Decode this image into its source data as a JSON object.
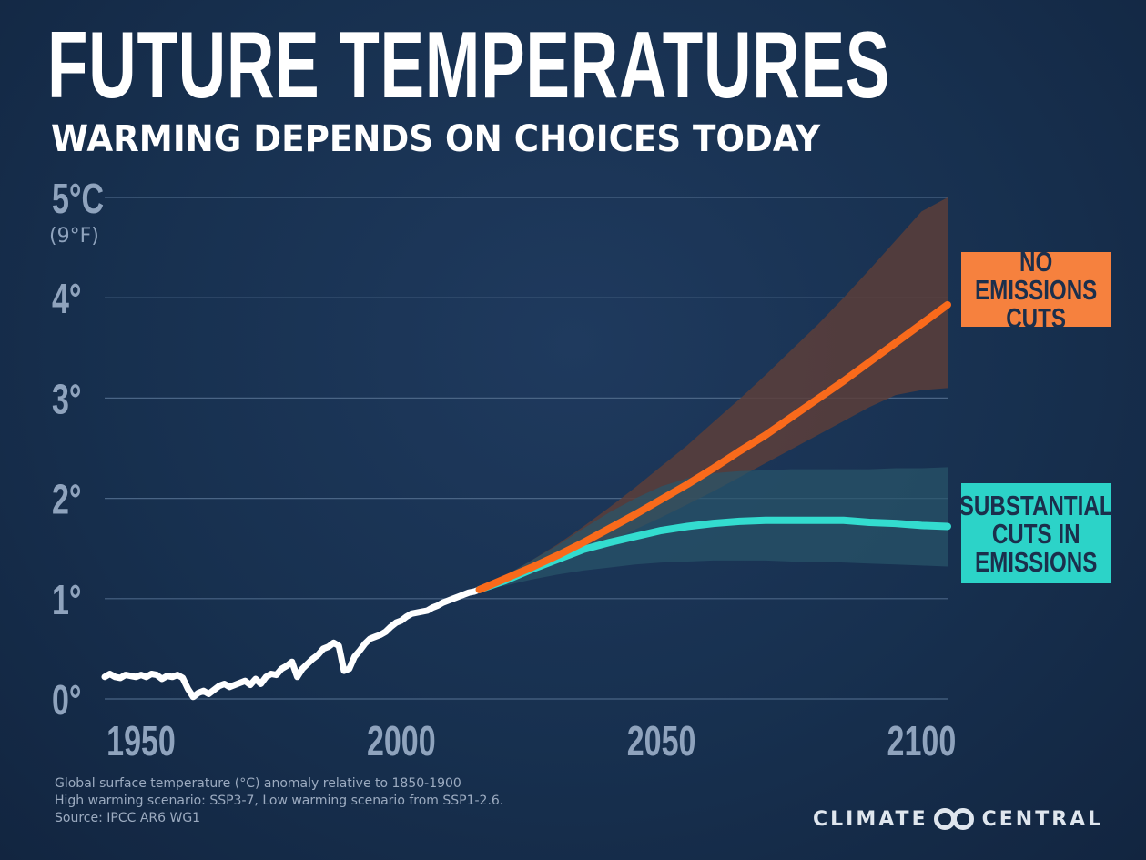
{
  "header": {
    "title": "FUTURE TEMPERATURES",
    "subtitle": "WARMING DEPENDS ON CHOICES TODAY"
  },
  "labels": {
    "high_scenario": "NO EMISSIONS\nCUTS",
    "low_scenario": "SUBSTANTIAL\nCUTS IN\nEMISSIONS"
  },
  "footnotes": [
    "Global surface temperature (°C) anomaly relative to 1850-1900",
    "High warming scenario: SSP3-7, Low warming scenario from SSP1-2.6.",
    "Source: IPCC AR6 WG1"
  ],
  "brand": {
    "left": "CLIMATE",
    "right": "CENTRAL",
    "icon": "climate-central-logo-icon"
  },
  "colors": {
    "background": "#17304f",
    "historical": "#ffffff",
    "high": "#f96a1b",
    "high_band": "#5c3e3a",
    "low": "#33dccf",
    "low_band": "#28556a",
    "grid": "#4a6585",
    "axis_text": "#8fa3bd"
  },
  "chart_data": {
    "type": "line",
    "title": "FUTURE TEMPERATURES",
    "subtitle": "WARMING DEPENDS ON CHOICES TODAY",
    "xlabel": "",
    "ylabel": "Global surface temperature (°C) anomaly relative to 1850-1900",
    "xlim": [
      1943,
      2105
    ],
    "ylim": [
      0,
      5
    ],
    "grid": true,
    "x_ticks": [
      {
        "value": 1950,
        "label": "1950"
      },
      {
        "value": 2000,
        "label": "2000"
      },
      {
        "value": 2050,
        "label": "2050"
      },
      {
        "value": 2100,
        "label": "2100"
      }
    ],
    "y_ticks": [
      {
        "value": 0,
        "label": "0°"
      },
      {
        "value": 1,
        "label": "1°"
      },
      {
        "value": 2,
        "label": "2°"
      },
      {
        "value": 3,
        "label": "3°"
      },
      {
        "value": 4,
        "label": "4°"
      },
      {
        "value": 5,
        "label": "5°C"
      }
    ],
    "y_top_secondary_label": "(9°F)",
    "series": [
      {
        "name": "Historical",
        "x": [
          1943,
          1944,
          1945,
          1946,
          1947,
          1948,
          1949,
          1950,
          1951,
          1952,
          1953,
          1954,
          1955,
          1956,
          1957,
          1958,
          1959,
          1960,
          1961,
          1962,
          1963,
          1964,
          1965,
          1966,
          1967,
          1968,
          1969,
          1970,
          1971,
          1972,
          1973,
          1974,
          1975,
          1976,
          1977,
          1978,
          1979,
          1980,
          1981,
          1982,
          1983,
          1984,
          1985,
          1986,
          1987,
          1988,
          1989,
          1990,
          1991,
          1992,
          1993,
          1994,
          1995,
          1996,
          1997,
          1998,
          1999,
          2000,
          2001,
          2002,
          2003,
          2004,
          2005,
          2006,
          2007,
          2008,
          2009,
          2010,
          2011,
          2012,
          2013,
          2014,
          2015
        ],
        "values": [
          0.22,
          0.25,
          0.22,
          0.21,
          0.24,
          0.23,
          0.22,
          0.24,
          0.22,
          0.25,
          0.24,
          0.2,
          0.23,
          0.22,
          0.24,
          0.21,
          0.1,
          0.02,
          0.06,
          0.08,
          0.05,
          0.09,
          0.13,
          0.15,
          0.12,
          0.14,
          0.16,
          0.18,
          0.14,
          0.2,
          0.15,
          0.22,
          0.25,
          0.24,
          0.3,
          0.33,
          0.37,
          0.22,
          0.3,
          0.35,
          0.4,
          0.44,
          0.5,
          0.52,
          0.56,
          0.53,
          0.28,
          0.3,
          0.42,
          0.48,
          0.55,
          0.6,
          0.62,
          0.64,
          0.67,
          0.72,
          0.76,
          0.78,
          0.82,
          0.85,
          0.86,
          0.87,
          0.88,
          0.91,
          0.93,
          0.96,
          0.98,
          1.0,
          1.02,
          1.04,
          1.06,
          1.07,
          1.09
        ]
      },
      {
        "name": "NO EMISSIONS CUTS (SSP3-7)",
        "x": [
          2015,
          2020,
          2025,
          2030,
          2035,
          2040,
          2045,
          2050,
          2055,
          2060,
          2065,
          2070,
          2075,
          2080,
          2085,
          2090,
          2095,
          2100,
          2105
        ],
        "values": [
          1.09,
          1.2,
          1.31,
          1.43,
          1.56,
          1.7,
          1.84,
          1.99,
          2.14,
          2.3,
          2.47,
          2.63,
          2.81,
          2.99,
          3.17,
          3.36,
          3.55,
          3.74,
          3.93
        ],
        "band_lower": [
          1.09,
          1.17,
          1.26,
          1.35,
          1.46,
          1.57,
          1.69,
          1.81,
          1.94,
          2.07,
          2.21,
          2.35,
          2.49,
          2.63,
          2.77,
          2.91,
          3.03,
          3.08,
          3.1
        ],
        "band_upper": [
          1.09,
          1.23,
          1.38,
          1.54,
          1.72,
          1.91,
          2.11,
          2.32,
          2.53,
          2.76,
          2.99,
          3.23,
          3.48,
          3.73,
          4.0,
          4.28,
          4.57,
          4.86,
          5.0
        ]
      },
      {
        "name": "SUBSTANTIAL CUTS IN EMISSIONS (SSP1-2.6)",
        "x": [
          2015,
          2020,
          2025,
          2030,
          2035,
          2040,
          2045,
          2050,
          2055,
          2060,
          2065,
          2070,
          2075,
          2080,
          2085,
          2090,
          2095,
          2100,
          2105
        ],
        "values": [
          1.09,
          1.18,
          1.29,
          1.39,
          1.49,
          1.56,
          1.62,
          1.68,
          1.72,
          1.75,
          1.77,
          1.78,
          1.78,
          1.78,
          1.78,
          1.76,
          1.75,
          1.73,
          1.72
        ],
        "band_lower": [
          1.09,
          1.13,
          1.19,
          1.24,
          1.28,
          1.31,
          1.34,
          1.36,
          1.37,
          1.38,
          1.38,
          1.38,
          1.37,
          1.37,
          1.36,
          1.35,
          1.34,
          1.33,
          1.32
        ],
        "band_upper": [
          1.09,
          1.23,
          1.38,
          1.53,
          1.7,
          1.86,
          2.0,
          2.12,
          2.2,
          2.25,
          2.27,
          2.28,
          2.29,
          2.29,
          2.29,
          2.29,
          2.3,
          2.3,
          2.31
        ]
      }
    ]
  }
}
